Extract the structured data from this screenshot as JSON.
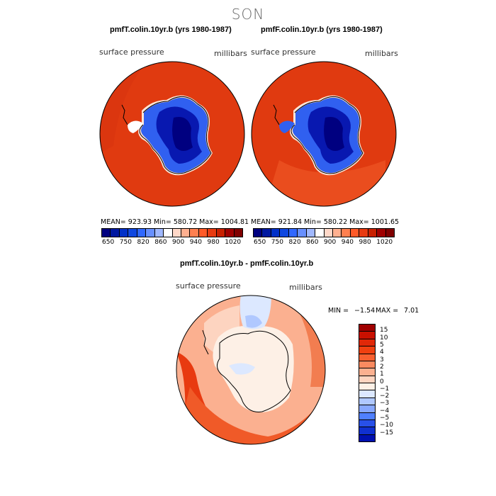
{
  "title": "SON",
  "panels": [
    {
      "title": "pmfT.colin.10yr.b (yrs 1980-1987)",
      "variable": "surface pressure",
      "units": "millibars",
      "stats": "MEAN=  923.93   Min=  580.72   Max=  1004.81"
    },
    {
      "title": "pmfF.colin.10yr.b (yrs 1980-1987)",
      "variable": "surface pressure",
      "units": "millibars",
      "stats": "MEAN=  921.84   Min=  580.22   Max=  1001.65"
    }
  ],
  "top_colorbar": {
    "ticks": [
      "650",
      "750",
      "820",
      "860",
      "900",
      "940",
      "980",
      "1020"
    ],
    "colors": [
      "#000080",
      "#0018a0",
      "#0030c8",
      "#1048e0",
      "#3068ff",
      "#6890ff",
      "#a0b8ff",
      "#ffffff",
      "#ffd8c8",
      "#ffb090",
      "#ff8050",
      "#ff5a28",
      "#e83a10",
      "#c82000",
      "#a00000",
      "#800000"
    ]
  },
  "diff_panel": {
    "title": "pmfT.colin.10yr.b - pmfF.colin.10yr.b",
    "variable": "surface pressure",
    "units": "millibars",
    "min_label": "MIN =",
    "min_value": "−1.54",
    "max_label": "MAX =",
    "max_value": "7.01"
  },
  "diff_colorbar": {
    "ticks": [
      "15",
      "10",
      "5",
      "4",
      "3",
      "2",
      "1",
      "0",
      "−1",
      "−2",
      "−3",
      "−4",
      "−5",
      "−10",
      "−15"
    ],
    "colors": [
      "#a00000",
      "#c81000",
      "#e02808",
      "#f04010",
      "#f86030",
      "#fa8a60",
      "#fbb090",
      "#fdd4c0",
      "#fdf0e6",
      "#dce8ff",
      "#b0c8ff",
      "#88a8ff",
      "#5080ff",
      "#2850e8",
      "#1030d0",
      "#0010b0"
    ]
  }
}
